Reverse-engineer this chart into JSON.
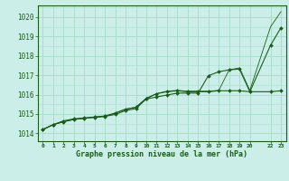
{
  "title": "Graphe pression niveau de la mer (hPa)",
  "bg_color": "#cceee8",
  "grid_color": "#aaddcc",
  "line_color": "#1a5c1a",
  "ylim": [
    1013.6,
    1020.6
  ],
  "xlim": [
    -0.5,
    23.5
  ],
  "yticks": [
    1014,
    1015,
    1016,
    1017,
    1018,
    1019,
    1020
  ],
  "x_ticks": [
    0,
    1,
    2,
    3,
    4,
    5,
    6,
    7,
    8,
    9,
    10,
    11,
    12,
    13,
    14,
    15,
    16,
    17,
    18,
    19,
    20,
    22,
    23
  ],
  "x_tick_labels": [
    "0",
    "1",
    "2",
    "3",
    "4",
    "5",
    "6",
    "7",
    "8",
    "9",
    "10",
    "11",
    "12",
    "13",
    "14",
    "15",
    "16",
    "17",
    "18",
    "19",
    "20",
    "22",
    "23"
  ],
  "series1_x": [
    0,
    1,
    2,
    3,
    4,
    5,
    6,
    7,
    8,
    9,
    10,
    11,
    12,
    13,
    14,
    15,
    16,
    17,
    18,
    19,
    20,
    22,
    23
  ],
  "series1_y": [
    1014.2,
    1014.45,
    1014.65,
    1014.75,
    1014.8,
    1014.85,
    1014.9,
    1015.05,
    1015.25,
    1015.35,
    1015.8,
    1016.05,
    1016.15,
    1016.2,
    1016.15,
    1016.15,
    1016.15,
    1016.2,
    1016.2,
    1016.2,
    1016.15,
    1016.15,
    1016.2
  ],
  "series2_x": [
    0,
    1,
    2,
    3,
    4,
    5,
    6,
    7,
    8,
    9,
    10,
    11,
    12,
    13,
    14,
    15,
    16,
    17,
    18,
    19,
    20,
    22,
    23
  ],
  "series2_y": [
    1014.2,
    1014.45,
    1014.6,
    1014.72,
    1014.78,
    1014.83,
    1014.88,
    1014.98,
    1015.18,
    1015.28,
    1015.78,
    1015.88,
    1015.98,
    1016.08,
    1016.08,
    1016.08,
    1016.98,
    1017.18,
    1017.28,
    1017.32,
    1016.15,
    1018.55,
    1019.45
  ],
  "series3_x": [
    0,
    1,
    2,
    3,
    4,
    5,
    6,
    7,
    8,
    9,
    10,
    11,
    12,
    13,
    14,
    15,
    16,
    17,
    18,
    19,
    20,
    22,
    23
  ],
  "series3_y": [
    1014.2,
    1014.45,
    1014.6,
    1014.72,
    1014.78,
    1014.83,
    1014.88,
    1015.05,
    1015.25,
    1015.35,
    1015.82,
    1016.05,
    1016.18,
    1016.22,
    1016.18,
    1016.18,
    1016.18,
    1016.22,
    1017.28,
    1017.38,
    1016.22,
    1019.5,
    1020.28
  ]
}
